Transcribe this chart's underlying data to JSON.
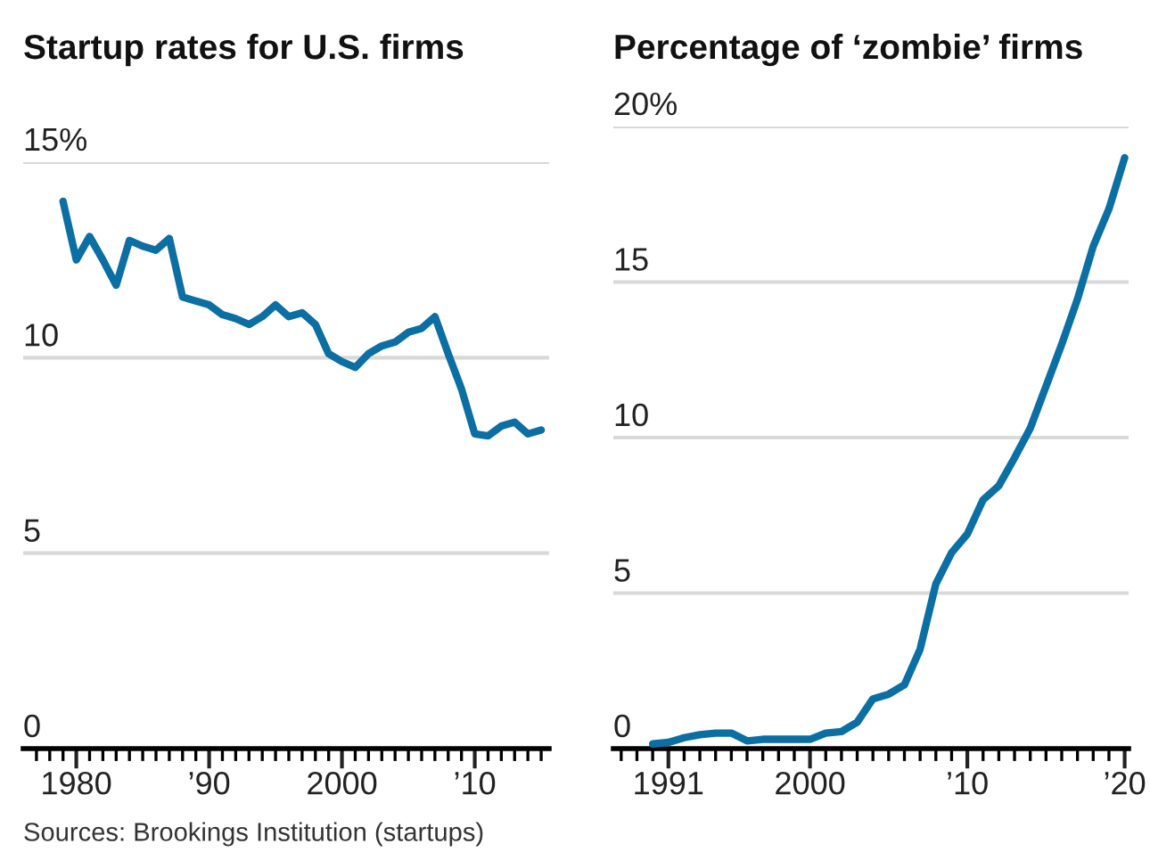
{
  "chart_data": [
    {
      "type": "line",
      "title": "Startup rates for U.S. firms",
      "annotations": [
        "Sources: Brookings Institution (startups)"
      ],
      "x": [
        1979,
        1980,
        1981,
        1982,
        1983,
        1984,
        1985,
        1986,
        1987,
        1988,
        1989,
        1990,
        1991,
        1992,
        1993,
        1994,
        1995,
        1996,
        1997,
        1998,
        1999,
        2000,
        2001,
        2002,
        2003,
        2004,
        2005,
        2006,
        2007,
        2008,
        2009,
        2010,
        2011,
        2012,
        2013,
        2014,
        2015
      ],
      "series": [
        {
          "color": "#0b6fa4",
          "values": [
            14.0,
            12.5,
            13.1,
            12.5,
            11.85,
            13.0,
            12.85,
            12.75,
            13.05,
            11.55,
            11.45,
            11.35,
            11.1,
            11.0,
            10.85,
            11.05,
            11.35,
            11.05,
            11.15,
            10.85,
            10.1,
            9.9,
            9.75,
            10.1,
            10.3,
            10.4,
            10.65,
            10.75,
            11.05,
            10.1,
            9.2,
            8.05,
            8.0,
            8.25,
            8.35,
            8.05,
            8.15
          ]
        }
      ],
      "xlim": [
        1976,
        2015.6
      ],
      "xticks": [
        {
          "value": 1977,
          "label": null
        },
        {
          "value": 1978,
          "label": null
        },
        {
          "value": 1979,
          "label": null
        },
        1980,
        {
          "value": 1981,
          "label": null
        },
        {
          "value": 1982,
          "label": null
        },
        {
          "value": 1983,
          "label": null
        },
        {
          "value": 1984,
          "label": null
        },
        {
          "value": 1985,
          "label": null
        },
        {
          "value": 1986,
          "label": null
        },
        {
          "value": 1987,
          "label": null
        },
        {
          "value": 1988,
          "label": null
        },
        {
          "value": 1989,
          "label": null
        },
        {
          "value": 1990,
          "label": "’90"
        },
        {
          "value": 1991,
          "label": null
        },
        {
          "value": 1992,
          "label": null
        },
        {
          "value": 1993,
          "label": null
        },
        {
          "value": 1994,
          "label": null
        },
        {
          "value": 1995,
          "label": null
        },
        {
          "value": 1996,
          "label": null
        },
        {
          "value": 1997,
          "label": null
        },
        {
          "value": 1998,
          "label": null
        },
        {
          "value": 1999,
          "label": null
        },
        2000,
        {
          "value": 2001,
          "label": null
        },
        {
          "value": 2002,
          "label": null
        },
        {
          "value": 2003,
          "label": null
        },
        {
          "value": 2004,
          "label": null
        },
        {
          "value": 2005,
          "label": null
        },
        {
          "value": 2006,
          "label": null
        },
        {
          "value": 2007,
          "label": null
        },
        {
          "value": 2008,
          "label": null
        },
        {
          "value": 2009,
          "label": null
        },
        {
          "value": 2010,
          "label": "’10"
        },
        {
          "value": 2011,
          "label": null
        },
        {
          "value": 2012,
          "label": null
        },
        {
          "value": 2013,
          "label": null
        },
        {
          "value": 2014,
          "label": null
        },
        {
          "value": 2015,
          "label": null
        }
      ],
      "ylim": [
        0,
        15
      ],
      "yticks": [
        0,
        5,
        10,
        {
          "value": 15,
          "label": "15%"
        }
      ],
      "grid": "y",
      "marker": "none",
      "line_style": "solid"
    },
    {
      "type": "line",
      "title": "Percentage of ‘zombie’ firms",
      "x": [
        1990,
        1991,
        1992,
        1993,
        1994,
        1995,
        1996,
        1997,
        1998,
        1999,
        2000,
        2001,
        2002,
        2003,
        2004,
        2005,
        2006,
        2007,
        2008,
        2009,
        2010,
        2011,
        2012,
        2013,
        2014,
        2015,
        2016,
        2017,
        2018,
        2019,
        2020
      ],
      "series": [
        {
          "color": "#0b6fa4",
          "values": [
            0.15,
            0.2,
            0.35,
            0.45,
            0.5,
            0.5,
            0.25,
            0.3,
            0.3,
            0.3,
            0.3,
            0.5,
            0.55,
            0.85,
            1.6,
            1.75,
            2.05,
            3.2,
            5.3,
            6.3,
            6.9,
            8.0,
            8.45,
            9.35,
            10.3,
            11.65,
            13.0,
            14.45,
            16.15,
            17.35,
            19.0
          ]
        }
      ],
      "xlim": [
        1987.5,
        2020.25
      ],
      "xticks": [
        {
          "value": 1988,
          "label": null
        },
        {
          "value": 1989,
          "label": null
        },
        {
          "value": 1990,
          "label": null
        },
        1991,
        {
          "value": 1992,
          "label": null
        },
        {
          "value": 1993,
          "label": null
        },
        {
          "value": 1994,
          "label": null
        },
        {
          "value": 1995,
          "label": null
        },
        {
          "value": 1996,
          "label": null
        },
        {
          "value": 1997,
          "label": null
        },
        {
          "value": 1998,
          "label": null
        },
        {
          "value": 1999,
          "label": null
        },
        2000,
        {
          "value": 2001,
          "label": null
        },
        {
          "value": 2002,
          "label": null
        },
        {
          "value": 2003,
          "label": null
        },
        {
          "value": 2004,
          "label": null
        },
        {
          "value": 2005,
          "label": null
        },
        {
          "value": 2006,
          "label": null
        },
        {
          "value": 2007,
          "label": null
        },
        {
          "value": 2008,
          "label": null
        },
        {
          "value": 2009,
          "label": null
        },
        {
          "value": 2010,
          "label": "’10"
        },
        {
          "value": 2011,
          "label": null
        },
        {
          "value": 2012,
          "label": null
        },
        {
          "value": 2013,
          "label": null
        },
        {
          "value": 2014,
          "label": null
        },
        {
          "value": 2015,
          "label": null
        },
        {
          "value": 2016,
          "label": null
        },
        {
          "value": 2017,
          "label": null
        },
        {
          "value": 2018,
          "label": null
        },
        {
          "value": 2019,
          "label": null
        },
        {
          "value": 2020,
          "label": "’20"
        }
      ],
      "ylim": [
        0,
        20
      ],
      "yticks": [
        0,
        5,
        10,
        15,
        {
          "value": 20,
          "label": "20%"
        }
      ],
      "grid": "y",
      "marker": "none",
      "line_style": "solid"
    }
  ]
}
